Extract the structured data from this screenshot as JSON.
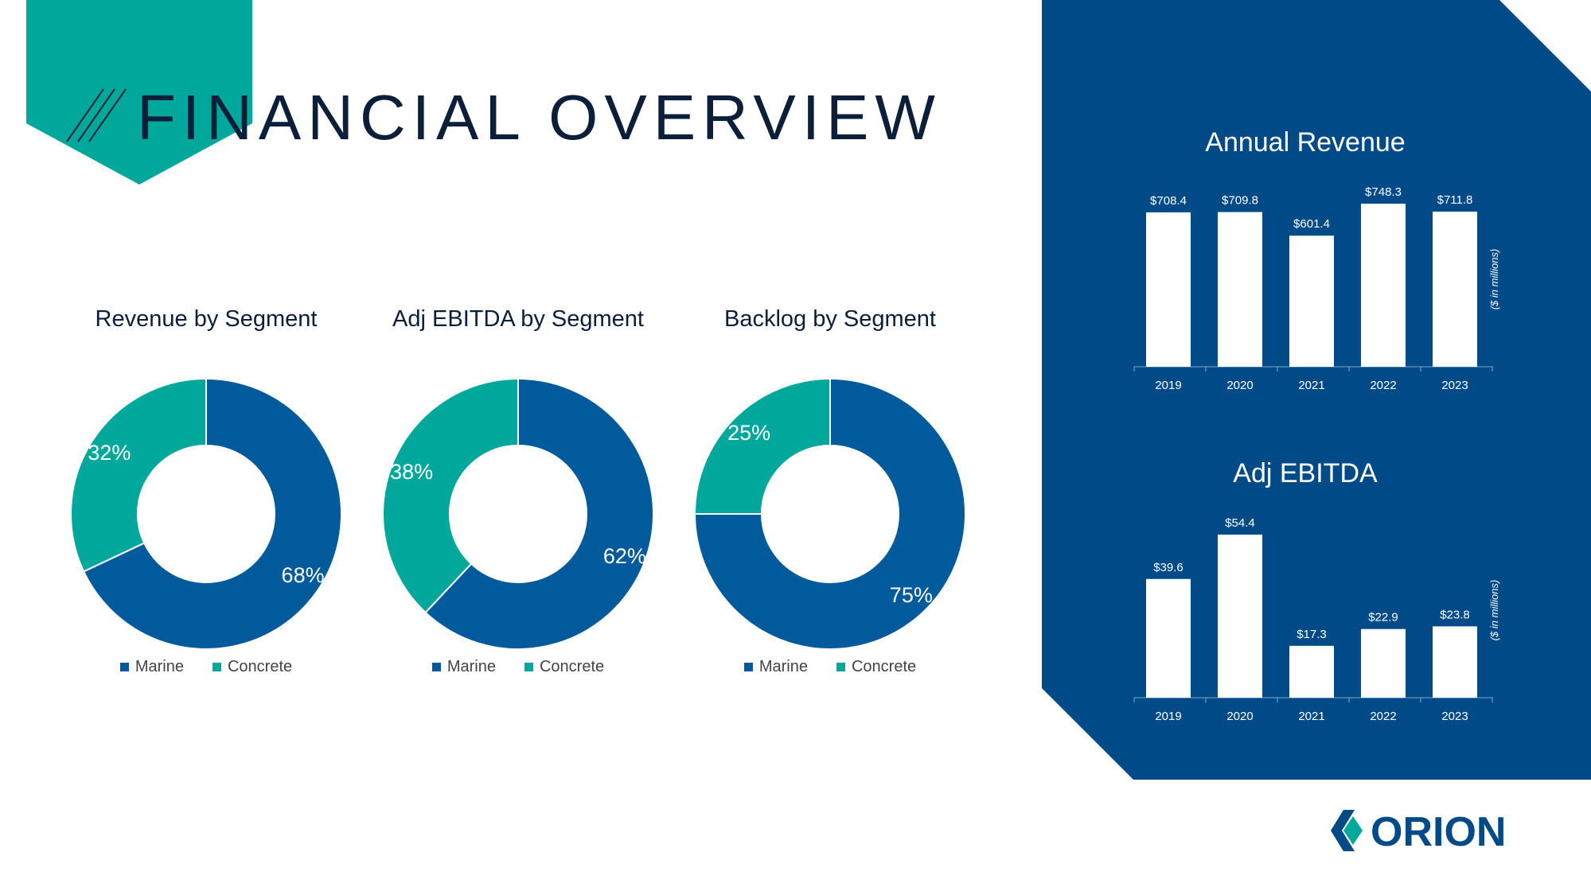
{
  "page": {
    "title": "FINANCIAL OVERVIEW"
  },
  "brand": {
    "name": "ORION"
  },
  "colors": {
    "marine": "#005a9c",
    "concrete": "#00a89c",
    "panel": "#004b87",
    "ink": "#0b1f3a"
  },
  "legend": {
    "marine_label": "Marine",
    "concrete_label": "Concrete"
  },
  "chart_data": [
    {
      "type": "pie",
      "title": "Revenue by Segment",
      "labels": [
        "Marine",
        "Concrete"
      ],
      "values": [
        68,
        32
      ],
      "data_labels": [
        "68%",
        "32%"
      ]
    },
    {
      "type": "pie",
      "title": "Adj EBITDA by Segment",
      "labels": [
        "Marine",
        "Concrete"
      ],
      "values": [
        62,
        38
      ],
      "data_labels": [
        "62%",
        "38%"
      ]
    },
    {
      "type": "pie",
      "title": "Backlog by Segment",
      "labels": [
        "Marine",
        "Concrete"
      ],
      "values": [
        75,
        25
      ],
      "data_labels": [
        "75%",
        "25%"
      ]
    },
    {
      "type": "bar",
      "title": "Annual Revenue",
      "categories": [
        "2019",
        "2020",
        "2021",
        "2022",
        "2023"
      ],
      "values": [
        708.4,
        709.8,
        601.4,
        748.3,
        711.8
      ],
      "data_labels": [
        "$708.4",
        "$709.8",
        "$601.4",
        "$748.3",
        "$711.8"
      ],
      "ylabel": "($ in millions)",
      "ylim": [
        0,
        748.3
      ]
    },
    {
      "type": "bar",
      "title": "Adj EBITDA",
      "categories": [
        "2019",
        "2020",
        "2021",
        "2022",
        "2023"
      ],
      "values": [
        39.6,
        54.4,
        17.3,
        22.9,
        23.8
      ],
      "data_labels": [
        "$39.6",
        "$54.4",
        "$17.3",
        "$22.9",
        "$23.8"
      ],
      "ylabel": "($ in millions)",
      "ylim": [
        0,
        54.4
      ]
    }
  ]
}
